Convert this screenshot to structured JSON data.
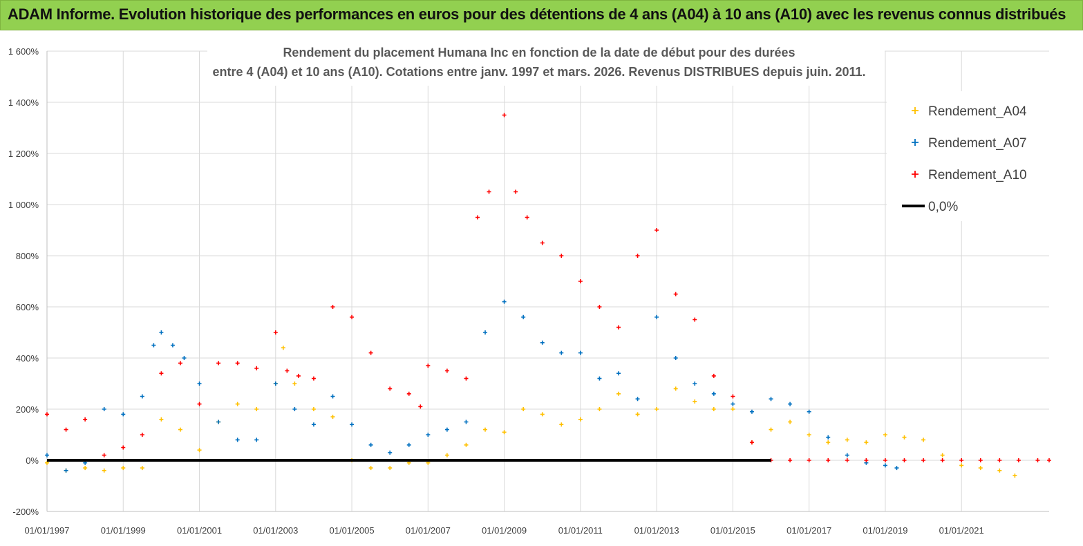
{
  "banner": {
    "title": "ADAM Informe. Evolution historique des performances en euros pour des détentions de 4 ans (A04) à 10 ans (A10) avec les revenus connus distribués"
  },
  "colors": {
    "banner": "#92d050",
    "a04": "#ffc000",
    "a07": "#0070c0",
    "a10": "#ff0000",
    "zero_line": "#000000",
    "grid": "#d9d9d9"
  },
  "chart_data": {
    "type": "scatter",
    "title_line1": "Rendement du placement Humana Inc en fonction de la date de début pour des durées",
    "title_line2": "entre 4 (A04) et 10 ans (A10).  Cotations entre janv. 1997 et mars. 2026. Revenus DISTRIBUES depuis juin. 2011.",
    "x_range": [
      1997.0,
      2023.3
    ],
    "ylim": [
      -200,
      1600
    ],
    "y_ticks": [
      -200,
      0,
      200,
      400,
      600,
      800,
      1000,
      1200,
      1400,
      1600
    ],
    "y_tick_labels": [
      "-200%",
      "0%",
      "200%",
      "400%",
      "600%",
      "800%",
      "1 000%",
      "1 200%",
      "1 400%",
      "1 600%"
    ],
    "x_ticks": [
      1997,
      1999,
      2001,
      2003,
      2005,
      2007,
      2009,
      2011,
      2013,
      2015,
      2017,
      2019,
      2021
    ],
    "x_tick_labels": [
      "01/01/1997",
      "01/01/1999",
      "01/01/2001",
      "01/01/2003",
      "01/01/2005",
      "01/01/2007",
      "01/01/2009",
      "01/01/2011",
      "01/01/2013",
      "01/01/2015",
      "01/01/2017",
      "01/01/2019",
      "01/01/2021"
    ],
    "legend_position": "top-right",
    "legend": [
      {
        "label": "Rendement_A04",
        "key": "a04",
        "marker": "plus"
      },
      {
        "label": "Rendement_A07",
        "key": "a07",
        "marker": "plus"
      },
      {
        "label": "Rendement_A10",
        "key": "a10",
        "marker": "plus"
      },
      {
        "label": "0,0%",
        "key": "zero_line",
        "marker": "line"
      }
    ],
    "series": [
      {
        "name": "Rendement_A04",
        "key": "a04",
        "x": [
          1997.0,
          1997.5,
          1998.0,
          1998.5,
          1999.0,
          1999.5,
          2000.0,
          2000.5,
          2001.0,
          2001.5,
          2002.0,
          2002.5,
          2003.0,
          2003.2,
          2003.5,
          2004.0,
          2004.5,
          2005.0,
          2005.5,
          2006.0,
          2006.5,
          2007.0,
          2007.5,
          2008.0,
          2008.5,
          2009.0,
          2009.5,
          2010.0,
          2010.5,
          2011.0,
          2011.5,
          2012.0,
          2012.5,
          2013.0,
          2013.5,
          2014.0,
          2014.5,
          2015.0,
          2015.5,
          2016.0,
          2016.5,
          2017.0,
          2017.5,
          2018.0,
          2018.5,
          2019.0,
          2019.5,
          2020.0,
          2020.5,
          2021.0,
          2021.5,
          2022.0,
          2022.4
        ],
        "y": [
          -10,
          -40,
          -30,
          -40,
          -30,
          -30,
          160,
          120,
          40,
          150,
          220,
          200,
          300,
          440,
          300,
          200,
          170,
          0,
          -30,
          -30,
          -10,
          -10,
          20,
          60,
          120,
          110,
          200,
          180,
          140,
          160,
          200,
          260,
          180,
          200,
          280,
          230,
          200,
          200,
          70,
          120,
          150,
          100,
          70,
          80,
          70,
          100,
          90,
          80,
          20,
          -20,
          -30,
          -40,
          -60
        ]
      },
      {
        "name": "Rendement_A07",
        "key": "a07",
        "x": [
          1997.0,
          1997.5,
          1998.0,
          1998.5,
          1999.0,
          1999.5,
          1999.8,
          2000.0,
          2000.3,
          2000.6,
          2001.0,
          2001.5,
          2002.0,
          2002.5,
          2003.0,
          2003.5,
          2004.0,
          2004.5,
          2005.0,
          2005.5,
          2006.0,
          2006.5,
          2007.0,
          2007.5,
          2008.0,
          2008.5,
          2009.0,
          2009.5,
          2010.0,
          2010.5,
          2011.0,
          2011.5,
          2012.0,
          2012.5,
          2013.0,
          2013.5,
          2014.0,
          2014.5,
          2015.0,
          2015.5,
          2016.0,
          2016.5,
          2017.0,
          2017.5,
          2018.0,
          2018.5,
          2019.0,
          2019.3
        ],
        "y": [
          20,
          -40,
          -10,
          200,
          180,
          250,
          450,
          500,
          450,
          400,
          300,
          150,
          80,
          80,
          300,
          200,
          140,
          250,
          140,
          60,
          30,
          60,
          100,
          120,
          150,
          500,
          620,
          560,
          460,
          420,
          420,
          320,
          340,
          240,
          560,
          400,
          300,
          260,
          220,
          190,
          240,
          220,
          190,
          90,
          20,
          -10,
          -20,
          -30
        ]
      },
      {
        "name": "Rendement_A10",
        "key": "a10",
        "x": [
          1997.0,
          1997.5,
          1998.0,
          1998.5,
          1999.0,
          1999.5,
          2000.0,
          2000.5,
          2001.0,
          2001.5,
          2002.0,
          2002.5,
          2003.0,
          2003.3,
          2003.6,
          2004.0,
          2004.5,
          2005.0,
          2005.5,
          2006.0,
          2006.5,
          2006.8,
          2007.0,
          2007.5,
          2008.0,
          2008.3,
          2008.6,
          2009.0,
          2009.3,
          2009.6,
          2010.0,
          2010.5,
          2011.0,
          2011.5,
          2012.0,
          2012.5,
          2013.0,
          2013.5,
          2014.0,
          2014.5,
          2015.0,
          2015.5,
          2016.0,
          2016.5,
          2017.0,
          2017.5,
          2018.0,
          2018.5,
          2019.0,
          2019.5,
          2020.0,
          2020.5,
          2021.0,
          2021.5,
          2022.0,
          2022.5,
          2023.0,
          2023.3
        ],
        "y": [
          180,
          120,
          160,
          20,
          50,
          100,
          340,
          380,
          220,
          380,
          380,
          360,
          500,
          350,
          330,
          320,
          600,
          560,
          420,
          280,
          260,
          210,
          370,
          350,
          320,
          950,
          1050,
          1350,
          1050,
          950,
          850,
          800,
          700,
          600,
          520,
          800,
          900,
          650,
          550,
          330,
          250,
          70,
          0,
          0,
          0,
          0,
          0,
          0,
          0,
          0,
          0,
          0,
          0,
          0,
          0,
          0,
          0,
          0
        ]
      }
    ]
  }
}
